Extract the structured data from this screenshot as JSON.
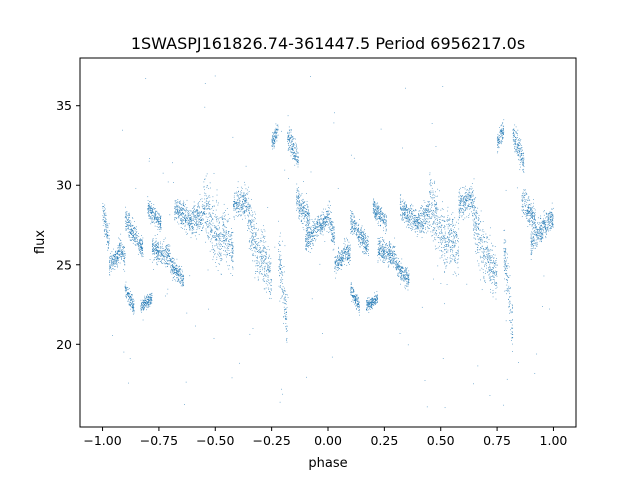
{
  "chart_data": {
    "type": "scatter",
    "title": "1SWASPJ161826.74-361447.5 Period 6956217.0s",
    "xlabel": "phase",
    "ylabel": "flux",
    "xlim": [
      -1.1,
      1.1
    ],
    "ylim": [
      14.8,
      38.0
    ],
    "xticks": [
      -1.0,
      -0.75,
      -0.5,
      -0.25,
      0.0,
      0.25,
      0.5,
      0.75,
      1.0
    ],
    "xtick_labels": [
      "−1.00",
      "−0.75",
      "−0.50",
      "−0.25",
      "0.00",
      "0.25",
      "0.50",
      "0.75",
      "1.00"
    ],
    "yticks": [
      20,
      25,
      30,
      35
    ],
    "ytick_labels": [
      "20",
      "25",
      "30",
      "35"
    ],
    "grid": false,
    "marker_color": "#1f77b4",
    "series": [
      {
        "description_of_shape": "phase-folded light curve, mirrored at phase -1 to 1",
        "segments": [
          {
            "x": [
              -1.0,
              -0.97
            ],
            "y": [
              28.3,
              26.5
            ],
            "spread": 0.9
          },
          {
            "x": [
              -0.97,
              -0.93
            ],
            "y": [
              25.0,
              25.6
            ],
            "spread": 0.6
          },
          {
            "x": [
              -0.93,
              -0.9
            ],
            "y": [
              26.0,
              25.6
            ],
            "spread": 0.8
          },
          {
            "x": [
              -0.9,
              -0.86
            ],
            "y": [
              23.5,
              22.3
            ],
            "spread": 0.5
          },
          {
            "x": [
              -0.9,
              -0.82
            ],
            "y": [
              27.8,
              26.0
            ],
            "spread": 0.7
          },
          {
            "x": [
              -0.83,
              -0.78
            ],
            "y": [
              22.4,
              22.9
            ],
            "spread": 0.4
          },
          {
            "x": [
              -0.8,
              -0.74
            ],
            "y": [
              28.6,
              27.6
            ],
            "spread": 0.6
          },
          {
            "x": [
              -0.78,
              -0.7
            ],
            "y": [
              26.0,
              25.6
            ],
            "spread": 0.7
          },
          {
            "x": [
              -0.7,
              -0.64
            ],
            "y": [
              25.0,
              24.0
            ],
            "spread": 0.6
          },
          {
            "x": [
              -0.68,
              -0.6
            ],
            "y": [
              28.6,
              27.6
            ],
            "spread": 0.8
          },
          {
            "x": [
              -0.6,
              -0.55
            ],
            "y": [
              27.8,
              28.2
            ],
            "spread": 1.0
          },
          {
            "x": [
              -0.55,
              -0.47
            ],
            "y": [
              29.0,
              26.0
            ],
            "spread": 2.0
          },
          {
            "x": [
              -0.47,
              -0.42
            ],
            "y": [
              27.0,
              26.0
            ],
            "spread": 1.6
          },
          {
            "x": [
              -0.42,
              -0.36
            ],
            "y": [
              28.8,
              29.0
            ],
            "spread": 0.9
          },
          {
            "x": [
              -0.36,
              -0.3
            ],
            "y": [
              28.6,
              25.0
            ],
            "spread": 1.7
          },
          {
            "x": [
              -0.3,
              -0.25
            ],
            "y": [
              26.0,
              24.0
            ],
            "spread": 1.6
          },
          {
            "x": [
              -0.25,
              -0.22
            ],
            "y": [
              32.6,
              33.6
            ],
            "spread": 0.6
          },
          {
            "x": [
              -0.22,
              -0.18
            ],
            "y": [
              26.0,
              21.0
            ],
            "spread": 1.8
          },
          {
            "x": [
              -0.18,
              -0.13
            ],
            "y": [
              33.3,
              31.5
            ],
            "spread": 0.8
          },
          {
            "x": [
              -0.14,
              -0.08
            ],
            "y": [
              29.0,
              27.8
            ],
            "spread": 0.9
          },
          {
            "x": [
              -0.1,
              -0.04
            ],
            "y": [
              26.4,
              27.5
            ],
            "spread": 0.8
          },
          {
            "x": [
              -0.04,
              0.0
            ],
            "y": [
              27.4,
              28.0
            ],
            "spread": 0.7
          },
          {
            "x": [
              0.0,
              0.03
            ],
            "y": [
              28.3,
              26.5
            ],
            "spread": 0.9
          },
          {
            "x": [
              0.03,
              0.07
            ],
            "y": [
              25.0,
              25.6
            ],
            "spread": 0.6
          },
          {
            "x": [
              0.07,
              0.1
            ],
            "y": [
              26.0,
              25.6
            ],
            "spread": 0.8
          },
          {
            "x": [
              0.1,
              0.14
            ],
            "y": [
              23.5,
              22.3
            ],
            "spread": 0.5
          },
          {
            "x": [
              0.1,
              0.18
            ],
            "y": [
              27.8,
              26.0
            ],
            "spread": 0.7
          },
          {
            "x": [
              0.17,
              0.22
            ],
            "y": [
              22.4,
              22.9
            ],
            "spread": 0.4
          },
          {
            "x": [
              0.2,
              0.26
            ],
            "y": [
              28.6,
              27.6
            ],
            "spread": 0.6
          },
          {
            "x": [
              0.22,
              0.3
            ],
            "y": [
              26.0,
              25.6
            ],
            "spread": 0.7
          },
          {
            "x": [
              0.3,
              0.36
            ],
            "y": [
              25.0,
              24.0
            ],
            "spread": 0.6
          },
          {
            "x": [
              0.32,
              0.4
            ],
            "y": [
              28.6,
              27.6
            ],
            "spread": 0.8
          },
          {
            "x": [
              0.4,
              0.45
            ],
            "y": [
              27.8,
              28.2
            ],
            "spread": 1.0
          },
          {
            "x": [
              0.45,
              0.53
            ],
            "y": [
              29.0,
              26.0
            ],
            "spread": 2.0
          },
          {
            "x": [
              0.53,
              0.58
            ],
            "y": [
              27.0,
              26.0
            ],
            "spread": 1.6
          },
          {
            "x": [
              0.58,
              0.64
            ],
            "y": [
              28.8,
              29.0
            ],
            "spread": 0.9
          },
          {
            "x": [
              0.64,
              0.7
            ],
            "y": [
              28.6,
              25.0
            ],
            "spread": 1.7
          },
          {
            "x": [
              0.7,
              0.75
            ],
            "y": [
              26.0,
              24.0
            ],
            "spread": 1.6
          },
          {
            "x": [
              0.75,
              0.78
            ],
            "y": [
              32.6,
              33.6
            ],
            "spread": 0.6
          },
          {
            "x": [
              0.78,
              0.82
            ],
            "y": [
              26.0,
              21.0
            ],
            "spread": 1.8
          },
          {
            "x": [
              0.82,
              0.87
            ],
            "y": [
              33.3,
              31.5
            ],
            "spread": 0.8
          },
          {
            "x": [
              0.86,
              0.92
            ],
            "y": [
              29.0,
              27.8
            ],
            "spread": 0.9
          },
          {
            "x": [
              0.9,
              0.96
            ],
            "y": [
              26.4,
              27.5
            ],
            "spread": 0.8
          },
          {
            "x": [
              0.96,
              1.0
            ],
            "y": [
              27.4,
              28.0
            ],
            "spread": 0.7
          }
        ]
      }
    ]
  }
}
